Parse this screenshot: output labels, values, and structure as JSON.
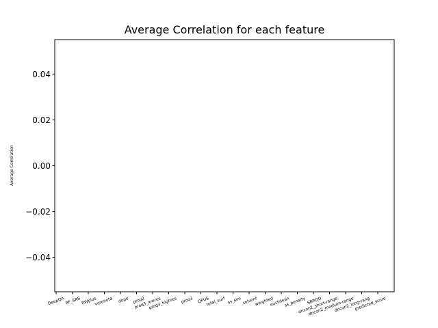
{
  "chart_data": {
    "type": "bar",
    "title": "Average Correlation for each feature",
    "xlabel": "",
    "ylabel": "Average Correlation",
    "categories": [
      "DeepQA",
      "RF_SRS",
      "RWplus",
      "voronota",
      "dope",
      "proq2",
      "proq3_lowres",
      "proq3_highres",
      "proq3",
      "OPUS",
      "total_surf",
      "ss_sim",
      "solvent",
      "weighted",
      "euclidean",
      "ss_penalty",
      "SBROD",
      "dncon2_short-range",
      "dncon2_medium-range",
      "dncon2_long-rang",
      "predicted_score"
    ],
    "values": [
      null,
      null,
      null,
      null,
      null,
      null,
      null,
      null,
      null,
      null,
      null,
      null,
      null,
      null,
      null,
      null,
      null,
      null,
      null,
      null,
      null
    ],
    "ylim": [
      -0.055,
      0.055
    ],
    "yticks": [
      0.04,
      0.02,
      0.0,
      -0.02,
      -0.04
    ],
    "ytick_labels": [
      "0.04",
      "0.02",
      "0.00",
      "−0.02",
      "−0.04"
    ],
    "grid": false
  }
}
